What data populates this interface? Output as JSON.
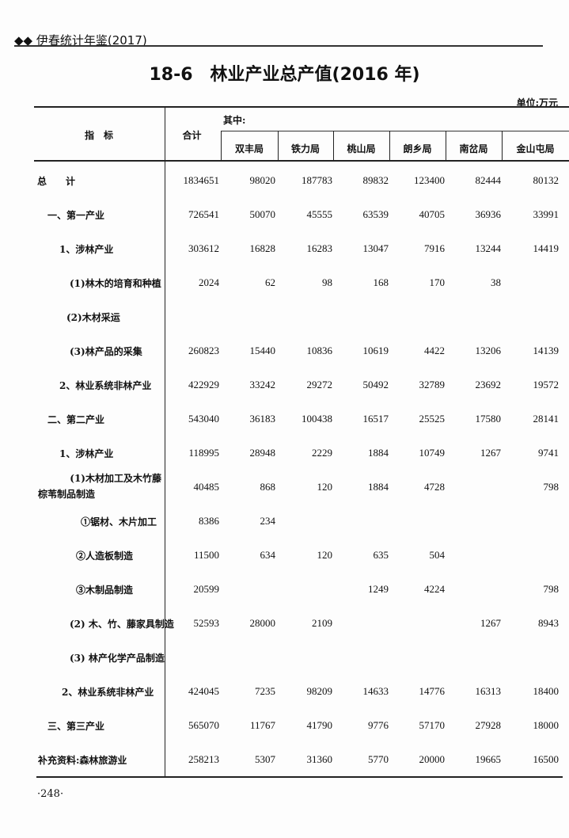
{
  "running_head": "◆◆ 伊春统计年鉴(2017)",
  "title": "18-6　林业产业总产值(2016 年)",
  "unit": "单位:万元",
  "table": {
    "header": {
      "indicator": "指　标",
      "total": "合计",
      "of_which": "其中:",
      "columns": [
        "双丰局",
        "铁力局",
        "桃山局",
        "朗乡局",
        "南岔局",
        "金山屯局"
      ]
    },
    "rows": [
      {
        "label": "总　　计",
        "values": [
          "1834651",
          "98020",
          "187783",
          "89832",
          "123400",
          "82444",
          "80132"
        ]
      },
      {
        "label": "一、第一产业",
        "values": [
          "726541",
          "50070",
          "45555",
          "63539",
          "40705",
          "36936",
          "33991"
        ]
      },
      {
        "label": "1、涉林产业",
        "values": [
          "303612",
          "16828",
          "16283",
          "13047",
          "7916",
          "13244",
          "14419"
        ]
      },
      {
        "label": "(1)林木的培育和种植",
        "values": [
          "2024",
          "62",
          "98",
          "168",
          "170",
          "38",
          ""
        ]
      },
      {
        "label": "(2)木材采运",
        "values": [
          "",
          "",
          "",
          "",
          "",
          "",
          ""
        ]
      },
      {
        "label": "(3)林产品的采集",
        "values": [
          "260823",
          "15440",
          "10836",
          "10619",
          "4422",
          "13206",
          "14139"
        ]
      },
      {
        "label": "2、林业系统非林产业",
        "values": [
          "422929",
          "33242",
          "29272",
          "50492",
          "32789",
          "23692",
          "19572"
        ]
      },
      {
        "label": "二、第二产业",
        "values": [
          "543040",
          "36183",
          "100438",
          "16517",
          "25525",
          "17580",
          "28141"
        ]
      },
      {
        "label": "1、涉林产业",
        "values": [
          "118995",
          "28948",
          "2229",
          "1884",
          "10749",
          "1267",
          "9741"
        ]
      },
      {
        "label": "(1)木材加工及木竹藤",
        "label2": "棕苇制品制造",
        "values": [
          "40485",
          "868",
          "120",
          "1884",
          "4728",
          "",
          "798"
        ]
      },
      {
        "label": "①锯材、木片加工",
        "values": [
          "8386",
          "234",
          "",
          "",
          "",
          "",
          ""
        ]
      },
      {
        "label": "②人造板制造",
        "values": [
          "11500",
          "634",
          "120",
          "635",
          "504",
          "",
          ""
        ]
      },
      {
        "label": "③木制品制造",
        "values": [
          "20599",
          "",
          "",
          "1249",
          "4224",
          "",
          "798"
        ]
      },
      {
        "label": "(2) 木、竹、藤家具制造",
        "values": [
          "52593",
          "28000",
          "2109",
          "",
          "",
          "1267",
          "8943"
        ]
      },
      {
        "label": "(3) 林产化学产品制造",
        "values": [
          "",
          "",
          "",
          "",
          "",
          "",
          ""
        ]
      },
      {
        "label": "2、林业系统非林产业",
        "values": [
          "424045",
          "7235",
          "98209",
          "14633",
          "14776",
          "16313",
          "18400"
        ]
      },
      {
        "label": "三、第三产业",
        "values": [
          "565070",
          "11767",
          "41790",
          "9776",
          "57170",
          "27928",
          "18000"
        ]
      },
      {
        "label": "补充资料:森林旅游业",
        "values": [
          "258213",
          "5307",
          "31360",
          "5770",
          "20000",
          "19665",
          "16500"
        ]
      }
    ]
  },
  "page_number": "·248·"
}
